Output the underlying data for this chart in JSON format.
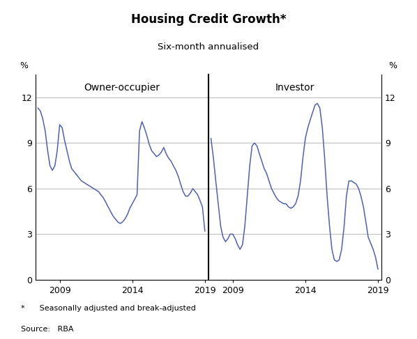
{
  "title": "Housing Credit Growth*",
  "subtitle": "Six-month annualised",
  "footnote": "*      Seasonally adjusted and break-adjusted",
  "source": "Source:   RBA",
  "left_label": "Owner-occupier",
  "right_label": "Investor",
  "ylabel_left": "%",
  "ylabel_right": "%",
  "ylim": [
    0,
    13.5
  ],
  "yticks": [
    0,
    3,
    6,
    9,
    12
  ],
  "line_color": "#4f60b0",
  "line_width": 1.1,
  "grid_color": "#b0b0b0",
  "bg_color": "#ffffff",
  "owner_x": [
    2007.5,
    2007.67,
    2007.83,
    2008.0,
    2008.17,
    2008.33,
    2008.5,
    2008.67,
    2008.83,
    2009.0,
    2009.17,
    2009.33,
    2009.5,
    2009.67,
    2009.83,
    2010.0,
    2010.17,
    2010.33,
    2010.5,
    2010.67,
    2010.83,
    2011.0,
    2011.17,
    2011.33,
    2011.5,
    2011.67,
    2011.83,
    2012.0,
    2012.17,
    2012.33,
    2012.5,
    2012.67,
    2012.83,
    2013.0,
    2013.17,
    2013.33,
    2013.5,
    2013.67,
    2013.83,
    2014.0,
    2014.17,
    2014.33,
    2014.5,
    2014.67,
    2014.83,
    2015.0,
    2015.17,
    2015.33,
    2015.5,
    2015.67,
    2015.83,
    2016.0,
    2016.17,
    2016.33,
    2016.5,
    2016.67,
    2016.83,
    2017.0,
    2017.17,
    2017.33,
    2017.5,
    2017.67,
    2017.83,
    2018.0,
    2018.17,
    2018.33,
    2018.5,
    2018.67,
    2018.83,
    2019.0
  ],
  "owner_y": [
    11.3,
    11.1,
    10.6,
    9.8,
    8.5,
    7.5,
    7.2,
    7.5,
    8.5,
    10.2,
    10.0,
    9.2,
    8.5,
    7.8,
    7.3,
    7.1,
    6.9,
    6.7,
    6.5,
    6.4,
    6.3,
    6.2,
    6.1,
    6.0,
    5.9,
    5.8,
    5.6,
    5.4,
    5.1,
    4.8,
    4.5,
    4.2,
    4.0,
    3.8,
    3.7,
    3.8,
    4.0,
    4.3,
    4.7,
    5.0,
    5.3,
    5.6,
    9.8,
    10.4,
    10.0,
    9.5,
    8.9,
    8.5,
    8.3,
    8.1,
    8.2,
    8.4,
    8.7,
    8.3,
    8.0,
    7.8,
    7.5,
    7.2,
    6.8,
    6.3,
    5.8,
    5.5,
    5.5,
    5.7,
    6.0,
    5.8,
    5.6,
    5.2,
    4.8,
    3.2
  ],
  "investor_x": [
    2007.5,
    2007.67,
    2007.83,
    2008.0,
    2008.17,
    2008.33,
    2008.5,
    2008.67,
    2008.83,
    2009.0,
    2009.17,
    2009.33,
    2009.5,
    2009.67,
    2009.83,
    2010.0,
    2010.17,
    2010.33,
    2010.5,
    2010.67,
    2010.83,
    2011.0,
    2011.17,
    2011.33,
    2011.5,
    2011.67,
    2011.83,
    2012.0,
    2012.17,
    2012.33,
    2012.5,
    2012.67,
    2012.83,
    2013.0,
    2013.17,
    2013.33,
    2013.5,
    2013.67,
    2013.83,
    2014.0,
    2014.17,
    2014.33,
    2014.5,
    2014.67,
    2014.83,
    2015.0,
    2015.17,
    2015.33,
    2015.5,
    2015.67,
    2015.83,
    2016.0,
    2016.17,
    2016.33,
    2016.5,
    2016.67,
    2016.83,
    2017.0,
    2017.17,
    2017.33,
    2017.5,
    2017.67,
    2017.83,
    2018.0,
    2018.17,
    2018.33,
    2018.5,
    2018.67,
    2018.83,
    2019.0
  ],
  "investor_y": [
    9.3,
    8.0,
    6.5,
    5.0,
    3.5,
    2.8,
    2.5,
    2.7,
    3.0,
    3.0,
    2.7,
    2.3,
    2.0,
    2.3,
    3.5,
    5.5,
    7.5,
    8.8,
    9.0,
    8.8,
    8.3,
    7.8,
    7.3,
    7.0,
    6.5,
    6.0,
    5.7,
    5.4,
    5.2,
    5.1,
    5.0,
    5.0,
    4.8,
    4.7,
    4.8,
    5.0,
    5.5,
    6.5,
    8.0,
    9.3,
    10.0,
    10.5,
    11.0,
    11.5,
    11.6,
    11.3,
    10.0,
    8.0,
    5.5,
    3.5,
    2.0,
    1.3,
    1.2,
    1.3,
    2.0,
    3.5,
    5.5,
    6.5,
    6.5,
    6.4,
    6.3,
    6.0,
    5.5,
    4.8,
    3.8,
    2.8,
    2.4,
    2.0,
    1.5,
    0.7
  ],
  "xlim": [
    2007.33,
    2019.25
  ],
  "xticks": [
    2009,
    2014,
    2019
  ]
}
